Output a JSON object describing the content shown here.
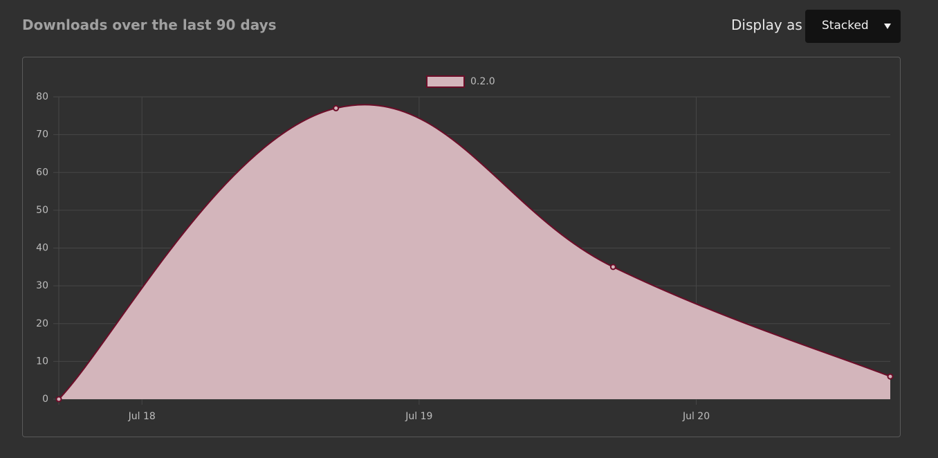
{
  "header": {
    "title": "Downloads over the last 90 days",
    "display_label": "Display as",
    "display_value": "Stacked"
  },
  "chart_data": {
    "type": "area",
    "x": [
      17.7,
      18.7,
      19.7,
      20.7
    ],
    "xlim": [
      17.7,
      20.7
    ],
    "xticks": [
      {
        "value": 18,
        "label": "Jul 18"
      },
      {
        "value": 19,
        "label": "Jul 19"
      },
      {
        "value": 20,
        "label": "Jul 20"
      }
    ],
    "ylim": [
      0,
      80
    ],
    "yticks": [
      0,
      10,
      20,
      30,
      40,
      50,
      60,
      70,
      80
    ],
    "grid": true,
    "legend": "top",
    "series": [
      {
        "name": "0.2.0",
        "color": "#6b0d28",
        "fill": "#d3b5bb",
        "values": [
          0,
          77,
          35,
          6
        ]
      }
    ]
  }
}
